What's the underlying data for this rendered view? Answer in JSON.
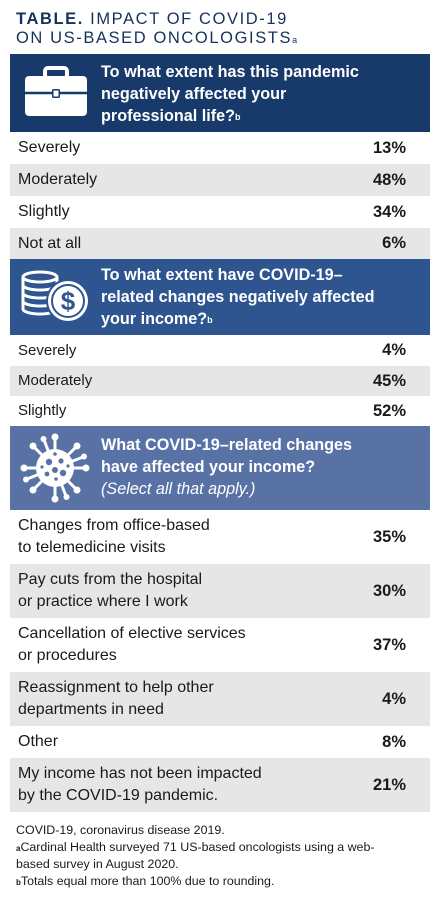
{
  "title": {
    "lead": "TABLE.",
    "rest": "IMPACT OF COVID-19",
    "line2": "ON US-BASED ONCOLOGISTS",
    "sup": "a"
  },
  "colors": {
    "navy": "#173a6b",
    "steel": "#2e5590",
    "slate": "#5872a6",
    "row_shade": "#e6e6e7"
  },
  "sections": [
    {
      "icon": "briefcase-icon",
      "question_l1": "To what extent has this pandemic",
      "question_l2": "negatively affected your",
      "question_l3": "professional life?",
      "sup": "b",
      "rows": [
        {
          "label": "Severely",
          "value": "13%"
        },
        {
          "label": "Moderately",
          "value": "48%"
        },
        {
          "label": "Slightly",
          "value": "34%"
        },
        {
          "label": "Not at all",
          "value": "6%"
        }
      ]
    },
    {
      "icon": "coins-dollar-icon",
      "question_l1": "To what extent have COVID-19–",
      "question_l2": "related changes negatively affected",
      "question_l3": "your income?",
      "sup": "b",
      "rows": [
        {
          "label": "Severely",
          "value": "4%"
        },
        {
          "label": "Moderately",
          "value": "45%"
        },
        {
          "label": "Slightly",
          "value": "52%"
        }
      ]
    },
    {
      "icon": "virus-icon",
      "question_l1": "What COVID-19–related changes",
      "question_l2": "have affected your income?",
      "question_l3": "(Select all that apply.)",
      "rows": [
        {
          "label_l1": "Changes from office-based",
          "label_l2": "to telemedicine visits",
          "value": "35%"
        },
        {
          "label_l1": "Pay cuts from the hospital",
          "label_l2": "or practice where I work",
          "value": "30%"
        },
        {
          "label_l1": "Cancellation of elective services",
          "label_l2": "or procedures",
          "value": "37%"
        },
        {
          "label_l1": "Reassignment to help other",
          "label_l2": "departments in need",
          "value": "4%"
        },
        {
          "label_l1": "Other",
          "value": "8%"
        },
        {
          "label_l1": "My income has not been impacted",
          "label_l2": "by the COVID-19 pandemic.",
          "value": "21%"
        }
      ]
    }
  ],
  "footnotes": {
    "abbrev": "COVID-19, coronavirus disease 2019.",
    "a_mark": "a",
    "a_l1": "Cardinal Health surveyed 71 US-based oncologists using a web-",
    "a_l2": "based survey in August 2020.",
    "b_mark": "b",
    "b_text": "Totals equal more than 100% due to rounding."
  }
}
